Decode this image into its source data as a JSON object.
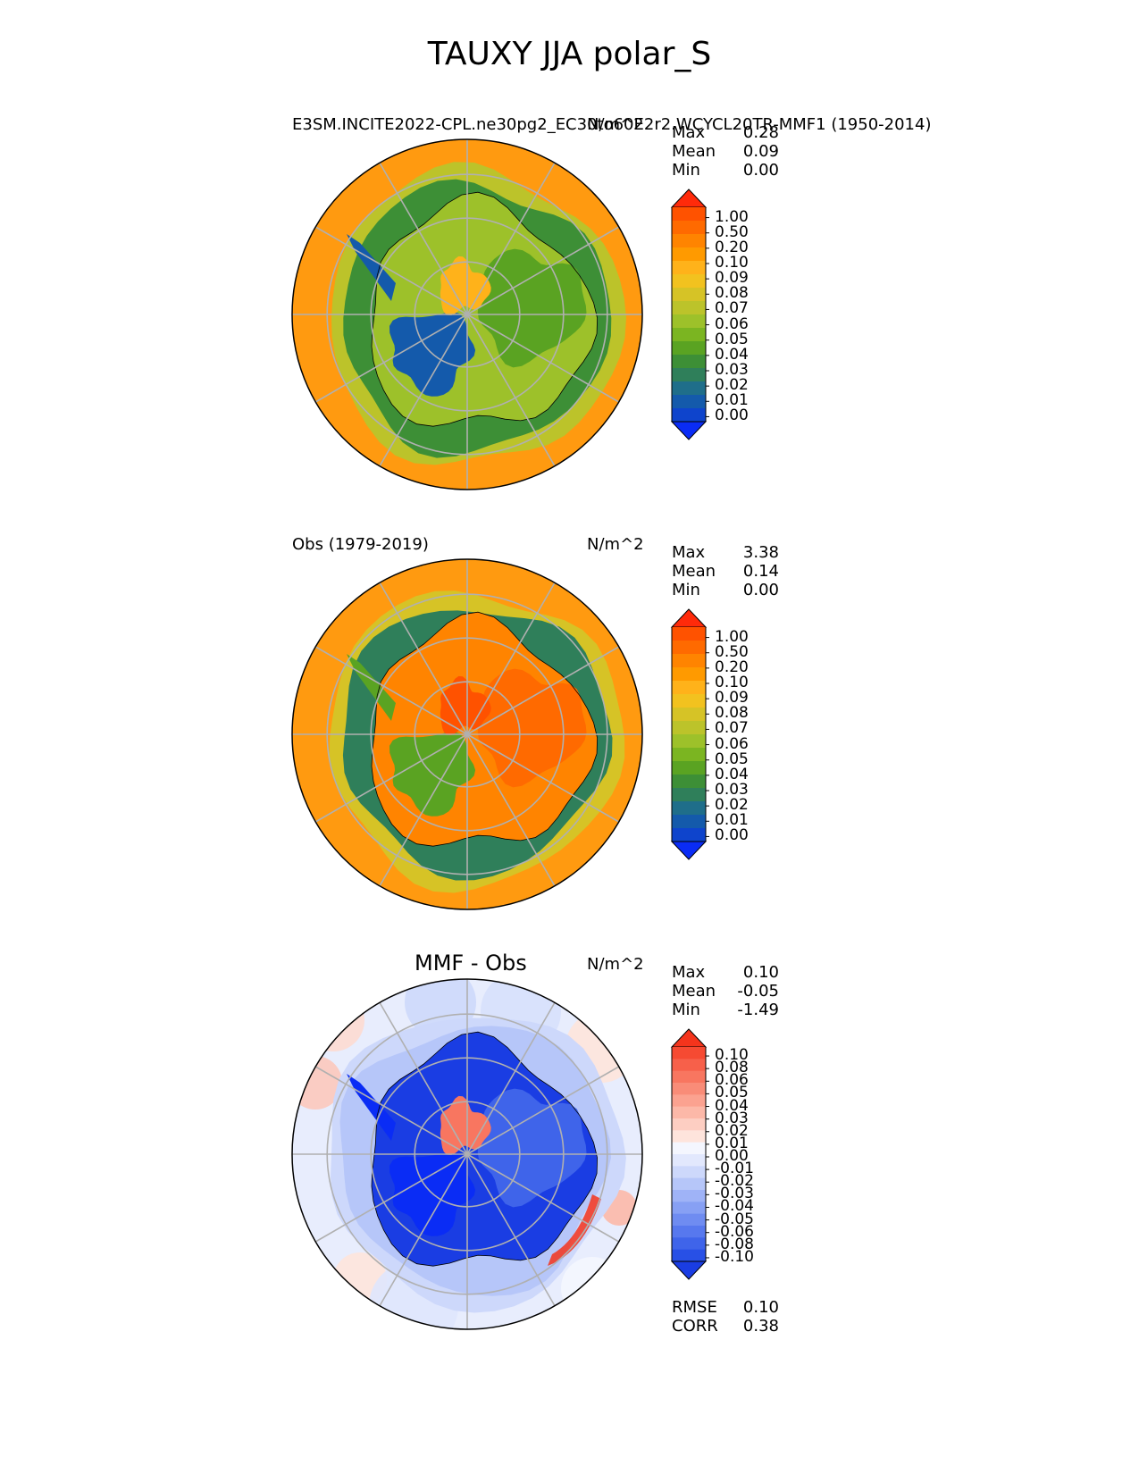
{
  "figure": {
    "title": "TAUXY JJA polar_S"
  },
  "panels": [
    {
      "id": "test",
      "left_title": "",
      "center_title": "",
      "right_title": "N/m^2",
      "long_title": "E3SM.INCITE2022-CPL.ne30pg2_EC30to60E2r2.WCYCL20TR-MMF1 (1950-2014)",
      "stats": [
        {
          "label": "Max",
          "value": "0.28"
        },
        {
          "label": "Mean",
          "value": "0.09"
        },
        {
          "label": "Min",
          "value": "0.00"
        }
      ],
      "colorbar_ticks": [
        "1.00",
        "0.50",
        "0.20",
        "0.10",
        "0.09",
        "0.08",
        "0.07",
        "0.06",
        "0.05",
        "0.04",
        "0.03",
        "0.02",
        "0.01",
        "0.00"
      ],
      "colorbar_colors": [
        "#ff2a0a",
        "#ff5200",
        "#ff6a00",
        "#ff8400",
        "#ff9a00",
        "#ffb21a",
        "#f2c21f",
        "#d6c326",
        "#bcc32a",
        "#9dc12a",
        "#7bb521",
        "#5aa322",
        "#3d8f36",
        "#2f7f5a",
        "#1f6e8a",
        "#145aab",
        "#0e44cc",
        "#0a2cf5"
      ]
    },
    {
      "id": "ref",
      "left_title": "Obs (1979-2019)",
      "center_title": "",
      "right_title": "N/m^2",
      "stats": [
        {
          "label": "Max",
          "value": "3.38"
        },
        {
          "label": "Mean",
          "value": "0.14"
        },
        {
          "label": "Min",
          "value": "0.00"
        }
      ],
      "colorbar_ticks": [
        "1.00",
        "0.50",
        "0.20",
        "0.10",
        "0.09",
        "0.08",
        "0.07",
        "0.06",
        "0.05",
        "0.04",
        "0.03",
        "0.02",
        "0.01",
        "0.00"
      ],
      "colorbar_colors": [
        "#ff2a0a",
        "#ff5200",
        "#ff6a00",
        "#ff8400",
        "#ff9a00",
        "#ffb21a",
        "#f2c21f",
        "#d6c326",
        "#bcc32a",
        "#9dc12a",
        "#7bb521",
        "#5aa322",
        "#3d8f36",
        "#2f7f5a",
        "#1f6e8a",
        "#145aab",
        "#0e44cc",
        "#0a2cf5"
      ]
    },
    {
      "id": "diff",
      "left_title": "",
      "center_title": "MMF - Obs",
      "right_title": "N/m^2",
      "stats": [
        {
          "label": "Max",
          "value": "0.10"
        },
        {
          "label": "Mean",
          "value": "-0.05"
        },
        {
          "label": "Min",
          "value": "-1.49"
        }
      ],
      "bottom_stats": [
        {
          "label": "RMSE",
          "value": "0.10"
        },
        {
          "label": "CORR",
          "value": "0.38"
        }
      ],
      "colorbar_ticks": [
        "0.10",
        "0.08",
        "0.06",
        "0.05",
        "0.04",
        "0.03",
        "0.02",
        "0.01",
        "0.00",
        "-0.01",
        "-0.02",
        "-0.03",
        "-0.04",
        "-0.05",
        "-0.06",
        "-0.08",
        "-0.10"
      ],
      "colorbar_colors": [
        "#f4341c",
        "#f64a32",
        "#f7604a",
        "#f87660",
        "#f98c78",
        "#fba290",
        "#fcb8a8",
        "#fdcec2",
        "#fee4dc",
        "#f4f6fe",
        "#e2e8fd",
        "#cdd8fb",
        "#b6c6f9",
        "#9fb3f7",
        "#87a0f4",
        "#6f8cf1",
        "#5778ee",
        "#3f64ea",
        "#2850e6",
        "#1a3de3"
      ]
    }
  ],
  "chart_data": {
    "type": "heatmap",
    "title": "TAUXY JJA polar_S",
    "projection": "south polar stereographic",
    "variable": "TAUXY",
    "season": "JJA",
    "units": "N/m^2",
    "maps": [
      {
        "name": "E3SM.INCITE2022-CPL.ne30pg2_EC30to60E2r2.WCYCL20TR-MMF1 (1950-2014)",
        "max": 0.28,
        "mean": 0.09,
        "min": 0.0,
        "levels": [
          0.0,
          0.01,
          0.02,
          0.03,
          0.04,
          0.05,
          0.06,
          0.07,
          0.08,
          0.09,
          0.1,
          0.2,
          0.5,
          1.0
        ]
      },
      {
        "name": "Obs (1979-2019)",
        "max": 3.38,
        "mean": 0.14,
        "min": 0.0,
        "levels": [
          0.0,
          0.01,
          0.02,
          0.03,
          0.04,
          0.05,
          0.06,
          0.07,
          0.08,
          0.09,
          0.1,
          0.2,
          0.5,
          1.0
        ]
      },
      {
        "name": "MMF - Obs",
        "max": 0.1,
        "mean": -0.05,
        "min": -1.49,
        "rmse": 0.1,
        "corr": 0.38,
        "levels": [
          -0.1,
          -0.08,
          -0.06,
          -0.05,
          -0.04,
          -0.03,
          -0.02,
          -0.01,
          0.0,
          0.01,
          0.02,
          0.03,
          0.04,
          0.05,
          0.06,
          0.08,
          0.1
        ]
      }
    ]
  },
  "map_fills": {
    "test": {
      "ocean": "#ff9a10",
      "ring": "#bcc32a",
      "ring_inner": "#3d8f36",
      "land": "#9dc12a",
      "land_patch": "#5aa322",
      "land_dark": "#145aab",
      "land_hi": "#ffb21a"
    },
    "ref": {
      "ocean": "#ff9a10",
      "ring": "#d6c326",
      "ring_inner": "#2f7f5a",
      "land": "#ff8400",
      "land_patch": "#ff6a00",
      "land_dark": "#5aa322",
      "land_hi": "#ff5200"
    },
    "diff": {
      "ocean": "#e8edfd",
      "ring": "#cdd8fb",
      "ring_inner": "#b6c6f9",
      "land": "#1a3de3",
      "land_patch": "#3f64ea",
      "land_dark": "#0a2cf5",
      "land_hi": "#f87660"
    }
  }
}
